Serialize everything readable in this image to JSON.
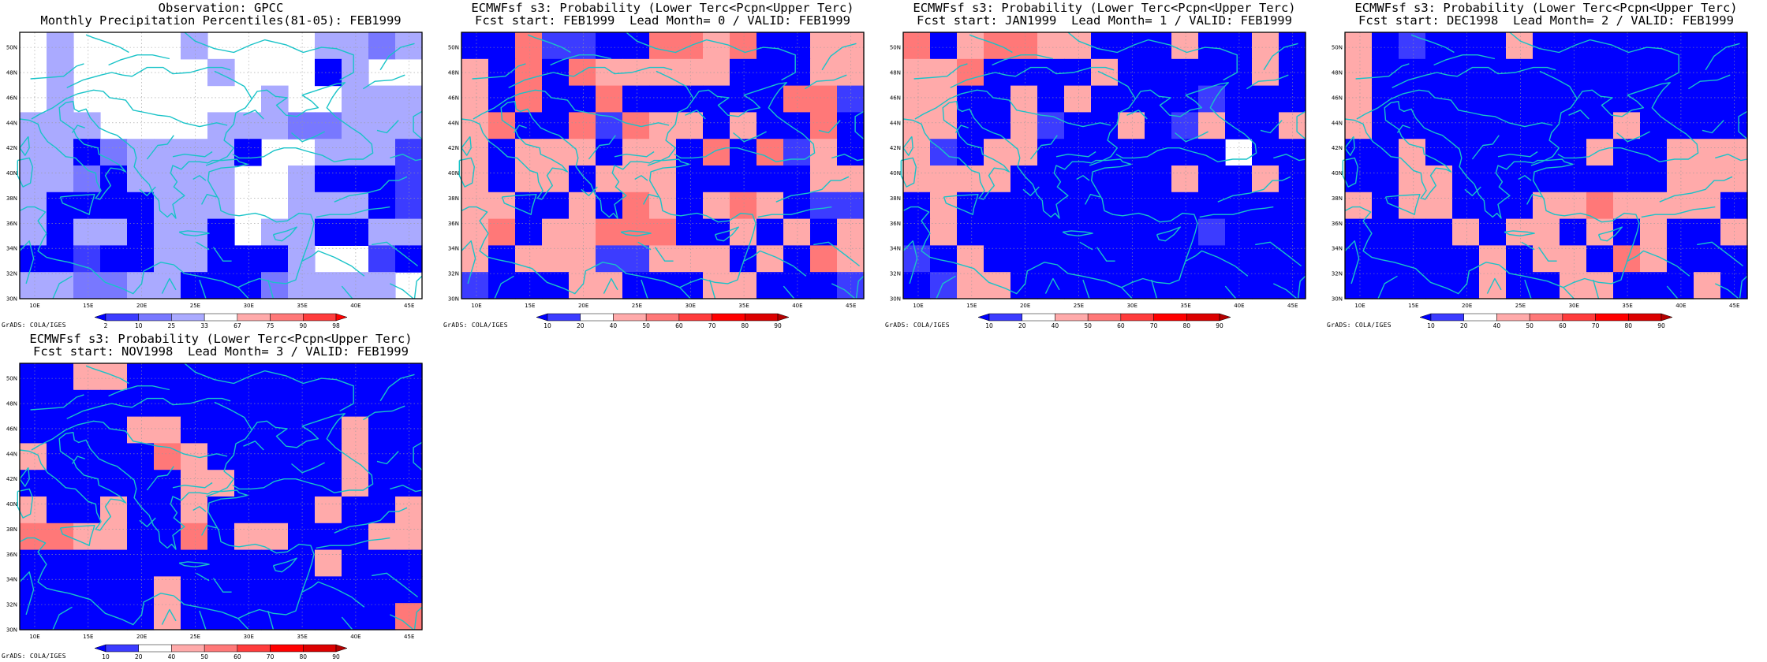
{
  "colors": {
    "coast": "#19C3C8",
    "grid": "#9a9a9a",
    "frame": "#000000"
  },
  "map": {
    "lat_labels": [
      "30N",
      "32N",
      "34N",
      "36N",
      "38N",
      "40N",
      "42N",
      "44N",
      "46N",
      "48N",
      "50N"
    ],
    "lon_labels": [
      "10E",
      "15E",
      "20E",
      "25E",
      "30E",
      "35E",
      "40E",
      "45E"
    ],
    "cols": 15,
    "rows": 10
  },
  "credit": "GrADS: COLA/IGES",
  "panels": [
    {
      "title_line1": "Observation: GPCC",
      "title_line2": "Monthly Precipitation Percentiles(81-05): FEB1999",
      "colorbar": {
        "labels": [
          "2",
          "10",
          "25",
          "33",
          "67",
          "75",
          "90",
          "98"
        ],
        "colors": [
          "#0000ff",
          "#3c3cff",
          "#7878ff",
          "#aaaaff",
          "#ffffff",
          "#ffaaaa",
          "#ff7878",
          "#ff3c3c",
          "#ff0000"
        ]
      },
      "grid": [
        "434444344443323",
        "434444434440344",
        "434444444344333",
        "333444433322333",
        "330233330443331",
        "332033334430001",
        "300003334433301",
        "303303304330033",
        "001003300034410",
        "332233000233334"
      ]
    },
    {
      "title_line1": "ECMWFsf s3: Probability (Lower Terc<Pcpn<Upper Terc)",
      "title_line2": "Fcst start: FEB1999  Lead Month= 0 / VALID: FEB1999",
      "colorbar": {
        "labels": [
          "10",
          "20",
          "40",
          "50",
          "60",
          "70",
          "80",
          "90"
        ],
        "colors": [
          "#0000ff",
          "#3c3cff",
          "#ffffff",
          "#ffaaaa",
          "#ff7878",
          "#ff3c3c",
          "#ff0000",
          "#dc0000",
          "#b40000"
        ]
      },
      "grid": [
        "004110044340033",
        "304043333300033",
        "304004000000441",
        "340041433030040",
        "303330330404130",
        "303303330000033",
        "330030430343011",
        "340334440030303",
        "303331133303043",
        "100033000330001"
      ]
    },
    {
      "title_line1": "ECMWFsf s3: Probability (Lower Terc<Pcpn<Upper Terc)",
      "title_line2": "Fcst start: JAN1999  Lead Month= 1 / VALID: FEB1999",
      "colorbar": {
        "labels": [
          "10",
          "20",
          "40",
          "50",
          "60",
          "70",
          "80",
          "90"
        ],
        "colors": [
          "#0000ff",
          "#3c3cff",
          "#ffffff",
          "#ffaaaa",
          "#ff7878",
          "#ff3c3c",
          "#ff0000",
          "#dc0000",
          "#b40000"
        ]
      },
      "grid": [
        "403443300030030",
        "334000030000030",
        "330030300001000",
        "330031003013003",
        "310330000000200",
        "333300000030030",
        "030000000000000",
        "030000000001000",
        "103000000000000",
        "013300000000000"
      ]
    },
    {
      "title_line1": "ECMWFsf s3: Probability (Lower Terc<Pcpn<Upper Terc)",
      "title_line2": "Fcst start: DEC1998  Lead Month= 2 / VALID: FEB1999",
      "colorbar": {
        "labels": [
          "10",
          "20",
          "40",
          "50",
          "60",
          "70",
          "80",
          "90"
        ],
        "colors": [
          "#0000ff",
          "#3c3cff",
          "#ffffff",
          "#ffaaaa",
          "#ff7878",
          "#ff3c3c",
          "#ff0000",
          "#dc0000",
          "#b40000"
        ]
      },
      "grid": [
        "301000300000000",
        "300000000000000",
        "300000000000000",
        "300000000030000",
        "003000000300333",
        "003300000000333",
        "303300033433330",
        "000030330303003",
        "000003033043000",
        "000003003300030"
      ]
    },
    {
      "title_line1": "ECMWFsf s3: Probability (Lower Terc<Pcpn<Upper Terc)",
      "title_line2": "Fcst start: NOV1998  Lead Month= 3 / VALID: FEB1999",
      "colorbar": {
        "labels": [
          "10",
          "20",
          "40",
          "50",
          "60",
          "70",
          "80",
          "90"
        ],
        "colors": [
          "#0000ff",
          "#3c3cff",
          "#ffffff",
          "#ffaaaa",
          "#ff7878",
          "#ff3c3c",
          "#ff0000",
          "#dc0000",
          "#b40000"
        ]
      },
      "grid": [
        "003300000000000",
        "000000000000000",
        "000033000000300",
        "300004300000300",
        "000000330000300",
        "300300300003003",
        "443300403300033",
        "000000000003000",
        "000003000000000",
        "000003000000004"
      ]
    }
  ]
}
